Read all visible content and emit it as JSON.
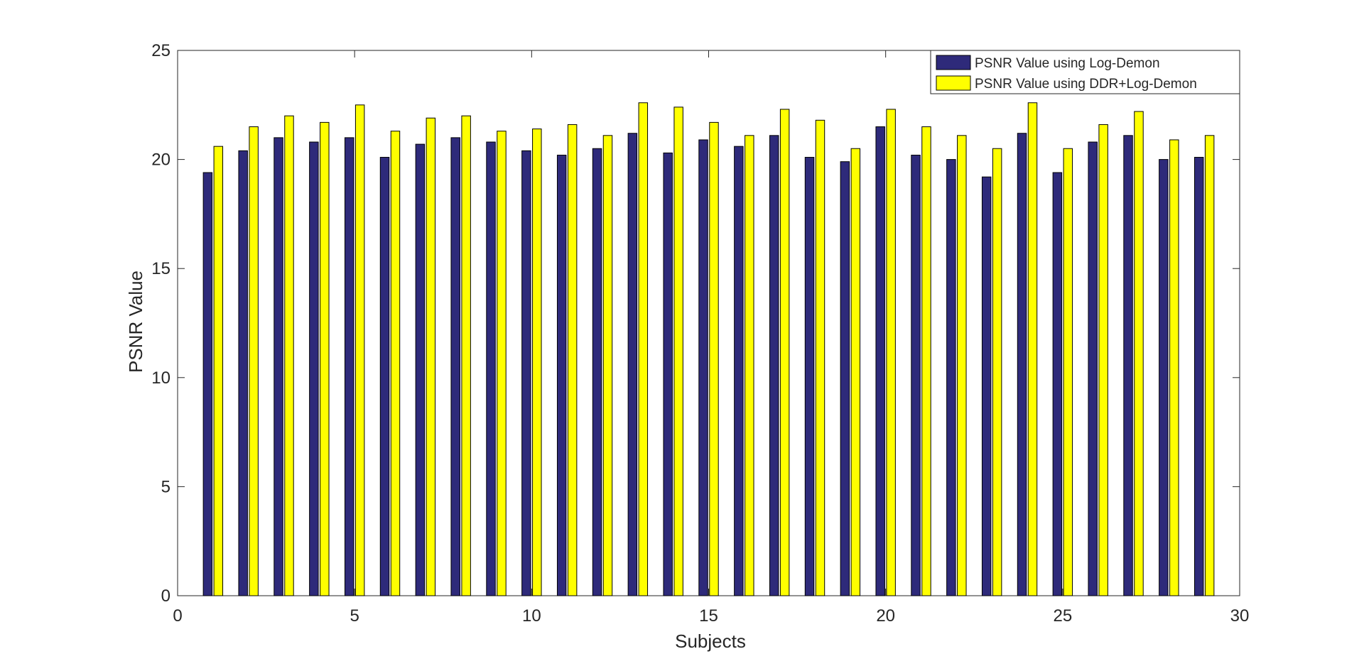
{
  "chart_data": {
    "type": "bar",
    "title": "",
    "xlabel": "Subjects",
    "ylabel": "PSNR Value",
    "xlim": [
      0,
      30
    ],
    "ylim": [
      0,
      25
    ],
    "xticks": [
      0,
      5,
      10,
      15,
      20,
      25,
      30
    ],
    "yticks": [
      0,
      5,
      10,
      15,
      20,
      25
    ],
    "grid": false,
    "legend_position": "top-right",
    "categories": [
      1,
      2,
      3,
      4,
      5,
      6,
      7,
      8,
      9,
      10,
      11,
      12,
      13,
      14,
      15,
      16,
      17,
      18,
      19,
      20,
      21,
      22,
      23,
      24,
      25,
      26,
      27,
      28,
      29
    ],
    "series": [
      {
        "name": "PSNR Value using Log-Demon",
        "color": "#2e2a7a",
        "values": [
          19.4,
          20.4,
          21.0,
          20.8,
          21.0,
          20.1,
          20.7,
          21.0,
          20.8,
          20.4,
          20.2,
          20.5,
          21.2,
          20.3,
          20.9,
          20.6,
          21.1,
          20.1,
          19.9,
          21.5,
          20.2,
          20.0,
          19.2,
          21.2,
          19.4,
          20.8,
          21.1,
          20.0,
          20.1
        ]
      },
      {
        "name": "PSNR Value using DDR+Log-Demon",
        "color": "#ffff00",
        "values": [
          20.6,
          21.5,
          22.0,
          21.7,
          22.5,
          21.3,
          21.9,
          22.0,
          21.3,
          21.4,
          21.6,
          21.1,
          22.6,
          22.4,
          21.7,
          21.1,
          22.3,
          21.8,
          20.5,
          22.3,
          21.5,
          21.1,
          20.5,
          22.6,
          20.5,
          21.6,
          22.2,
          20.9,
          21.1
        ]
      }
    ]
  }
}
